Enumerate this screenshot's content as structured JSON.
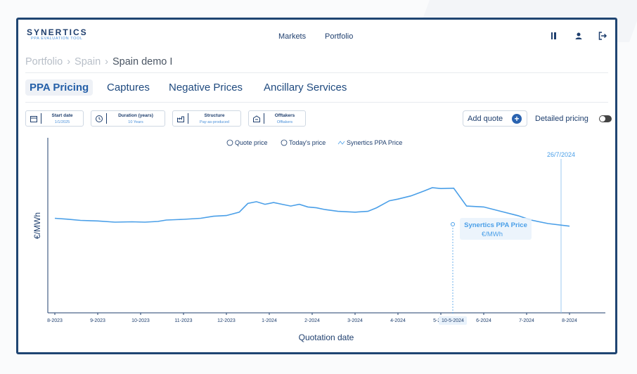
{
  "app": {
    "logo": "SYNERTICS",
    "tagline": "PPA EVALUATION TOOL",
    "nav": [
      "Markets",
      "Portfolio"
    ]
  },
  "breadcrumb": [
    "Portfolio",
    "Spain",
    "Spain demo I"
  ],
  "tabs": [
    {
      "label": "PPA Pricing",
      "active": true
    },
    {
      "label": "Captures",
      "active": false
    },
    {
      "label": "Negative Prices",
      "active": false
    },
    {
      "label": "Ancillary Services",
      "active": false
    }
  ],
  "filters": [
    {
      "label": "Start date",
      "value": "1/1/2025",
      "icon": "calendar-icon"
    },
    {
      "label": "Duration (years)",
      "value": "10 Years",
      "icon": "clock-icon"
    },
    {
      "label": "Structure",
      "value": "Pay-as-produced",
      "icon": "factory-icon"
    },
    {
      "label": "Offtakers",
      "value": "Offtakers",
      "icon": "building-icon"
    }
  ],
  "actions": {
    "add_quote": "Add quote",
    "detailed_pricing": "Detailed pricing",
    "detailed_pricing_on": false
  },
  "colors": {
    "accent": "#4a9fe8",
    "navy": "#1f3f6e",
    "brand_blue": "#2a63b0"
  },
  "chart_data": {
    "type": "line",
    "legend": [
      "Quote price",
      "Today's price",
      "Synertics PPA Price"
    ],
    "legend_position": "top-center",
    "ylabel": "€/MWh",
    "xlabel": "Quotation date",
    "x_ticks": [
      "8-2023",
      "9-2023",
      "10-2023",
      "11-2023",
      "12-2023",
      "1-2024",
      "2-2024",
      "3-2024",
      "4-2024",
      "5-2024",
      "6-2024",
      "7-2024",
      "8-2024"
    ],
    "today_marker": "26/7/2024",
    "hover": {
      "date": "10-5-2024",
      "series_label": "Synertics PPA Price",
      "unit": "€/MWh"
    },
    "series": [
      {
        "name": "Synertics PPA Price",
        "color": "#4a9fe8",
        "points": [
          [
            0.0,
            54.0
          ],
          [
            0.3,
            53.5
          ],
          [
            0.6,
            52.8
          ],
          [
            1.0,
            52.5
          ],
          [
            1.4,
            51.8
          ],
          [
            1.8,
            52.0
          ],
          [
            2.1,
            51.8
          ],
          [
            2.4,
            52.2
          ],
          [
            2.6,
            53.0
          ],
          [
            3.0,
            53.4
          ],
          [
            3.4,
            54.0
          ],
          [
            3.7,
            55.2
          ],
          [
            4.0,
            55.6
          ],
          [
            4.3,
            57.5
          ],
          [
            4.5,
            62.5
          ],
          [
            4.7,
            63.5
          ],
          [
            4.9,
            62.0
          ],
          [
            5.1,
            63.0
          ],
          [
            5.3,
            62.0
          ],
          [
            5.5,
            61.0
          ],
          [
            5.7,
            62.0
          ],
          [
            5.9,
            60.5
          ],
          [
            6.1,
            60.0
          ],
          [
            6.3,
            59.0
          ],
          [
            6.6,
            58.0
          ],
          [
            7.0,
            57.5
          ],
          [
            7.3,
            58.0
          ],
          [
            7.5,
            60.0
          ],
          [
            7.8,
            64.0
          ],
          [
            8.0,
            65.0
          ],
          [
            8.3,
            66.8
          ],
          [
            8.6,
            69.5
          ],
          [
            8.8,
            71.5
          ],
          [
            9.0,
            71.0
          ],
          [
            9.3,
            71.2
          ],
          [
            9.6,
            61.0
          ],
          [
            10.0,
            60.5
          ],
          [
            10.4,
            58.0
          ],
          [
            10.8,
            55.5
          ],
          [
            11.1,
            53.0
          ],
          [
            11.5,
            51.0
          ],
          [
            12.0,
            49.5
          ]
        ]
      }
    ],
    "ylim": [
      0,
      100
    ]
  }
}
